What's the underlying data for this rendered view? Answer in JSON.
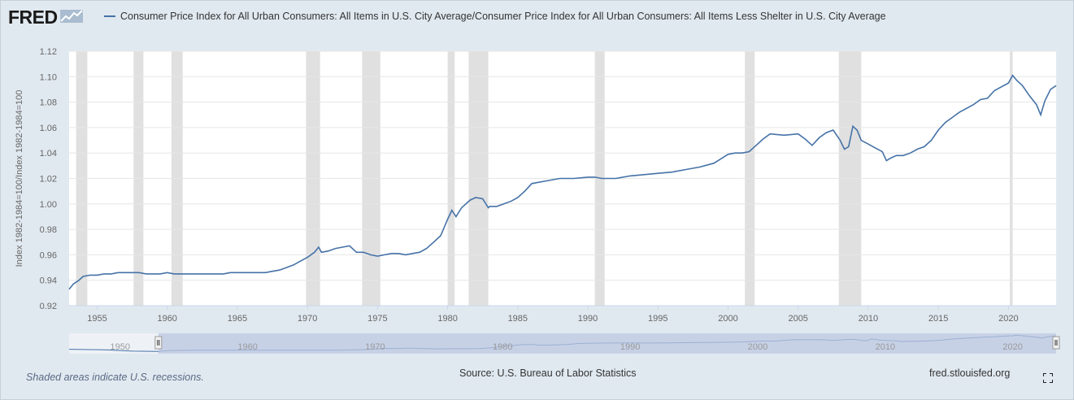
{
  "header": {
    "logo_text": "FRED",
    "logo_icon": "fred-chart-logo-icon",
    "legend_label": "Consumer Price Index for All Urban Consumers: All Items in U.S. City Average/Consumer Price Index for All Urban Consumers: All Items Less Shelter in U.S. City Average"
  },
  "colors": {
    "series": "#4572a7",
    "recession": "#e0e0e0",
    "background": "#e1e9f0",
    "plot_bg": "#ffffff",
    "navigator_fill": "#b9c6e0"
  },
  "footer": {
    "recession_note": "Shaded areas indicate U.S. recessions.",
    "source": "Source: U.S. Bureau of Labor Statistics",
    "site": "fred.stlouisfed.org",
    "fullscreen_icon": "fullscreen-icon"
  },
  "chart_data": {
    "type": "line",
    "title": "",
    "xlabel": "",
    "ylabel": "Index 1982-1984=100/Index 1982-1984=100",
    "xlim": [
      1953.0,
      2023.4
    ],
    "ylim": [
      0.92,
      1.12
    ],
    "x_ticks": [
      "1955",
      "1960",
      "1965",
      "1970",
      "1975",
      "1980",
      "1985",
      "1990",
      "1995",
      "2000",
      "2005",
      "2010",
      "2015",
      "2020"
    ],
    "y_ticks": [
      "0.92",
      "0.94",
      "0.96",
      "0.98",
      "1.00",
      "1.02",
      "1.04",
      "1.06",
      "1.08",
      "1.10",
      "1.12"
    ],
    "grid": true,
    "legend": "top",
    "recessions": [
      [
        1953.5,
        1954.3
      ],
      [
        1957.6,
        1958.3
      ],
      [
        1960.3,
        1961.1
      ],
      [
        1969.9,
        1970.9
      ],
      [
        1973.9,
        1975.2
      ],
      [
        1980.0,
        1980.5
      ],
      [
        1981.5,
        1982.9
      ],
      [
        1990.5,
        1991.2
      ],
      [
        2001.2,
        2001.9
      ],
      [
        2007.9,
        2009.5
      ],
      [
        2020.1,
        2020.3
      ]
    ],
    "series": [
      {
        "x": [
          1953.0,
          1953.3,
          1953.7,
          1954.0,
          1954.5,
          1955.0,
          1955.5,
          1956.0,
          1956.5,
          1957.0,
          1957.5,
          1958.0,
          1958.5,
          1959.0,
          1959.5,
          1960.0,
          1960.5,
          1961.0,
          1961.5,
          1962.0,
          1962.5,
          1963.0,
          1963.5,
          1964.0,
          1964.5,
          1965.0,
          1965.5,
          1966.0,
          1966.5,
          1967.0,
          1967.5,
          1968.0,
          1968.5,
          1969.0,
          1969.5,
          1970.0,
          1970.5,
          1970.8,
          1971.0,
          1971.5,
          1972.0,
          1972.5,
          1973.0,
          1973.5,
          1974.0,
          1974.5,
          1975.0,
          1975.5,
          1976.0,
          1976.5,
          1977.0,
          1977.5,
          1978.0,
          1978.5,
          1979.0,
          1979.5,
          1980.0,
          1980.3,
          1980.6,
          1981.0,
          1981.3,
          1981.6,
          1982.0,
          1982.5,
          1982.9,
          1983.0,
          1983.5,
          1984.0,
          1984.5,
          1985.0,
          1985.5,
          1986.0,
          1986.5,
          1987.0,
          1988.0,
          1989.0,
          1990.0,
          1990.5,
          1991.0,
          1992.0,
          1993.0,
          1994.0,
          1995.0,
          1996.0,
          1997.0,
          1998.0,
          1999.0,
          2000.0,
          2000.5,
          2001.0,
          2001.5,
          2002.0,
          2002.5,
          2003.0,
          2004.0,
          2005.0,
          2005.5,
          2006.0,
          2006.5,
          2007.0,
          2007.5,
          2008.0,
          2008.3,
          2008.6,
          2008.9,
          2009.2,
          2009.5,
          2010.0,
          2010.5,
          2011.0,
          2011.3,
          2011.6,
          2012.0,
          2012.5,
          2013.0,
          2013.5,
          2014.0,
          2014.5,
          2015.0,
          2015.5,
          2016.0,
          2016.5,
          2017.0,
          2017.5,
          2018.0,
          2018.5,
          2019.0,
          2019.5,
          2020.0,
          2020.3,
          2020.6,
          2021.0,
          2021.5,
          2022.0,
          2022.3,
          2022.6,
          2023.0,
          2023.4
        ],
        "values": [
          0.933,
          0.937,
          0.94,
          0.943,
          0.944,
          0.944,
          0.945,
          0.945,
          0.946,
          0.946,
          0.946,
          0.946,
          0.945,
          0.945,
          0.945,
          0.946,
          0.945,
          0.945,
          0.945,
          0.945,
          0.945,
          0.945,
          0.945,
          0.945,
          0.946,
          0.946,
          0.946,
          0.946,
          0.946,
          0.946,
          0.947,
          0.948,
          0.95,
          0.952,
          0.955,
          0.958,
          0.962,
          0.966,
          0.962,
          0.963,
          0.965,
          0.966,
          0.967,
          0.962,
          0.962,
          0.96,
          0.959,
          0.96,
          0.961,
          0.961,
          0.96,
          0.961,
          0.962,
          0.965,
          0.97,
          0.975,
          0.988,
          0.995,
          0.99,
          0.997,
          1.0,
          1.003,
          1.005,
          1.004,
          0.997,
          0.998,
          0.998,
          1.0,
          1.002,
          1.005,
          1.01,
          1.016,
          1.017,
          1.018,
          1.02,
          1.02,
          1.021,
          1.021,
          1.02,
          1.02,
          1.022,
          1.023,
          1.024,
          1.025,
          1.027,
          1.029,
          1.032,
          1.039,
          1.04,
          1.04,
          1.041,
          1.046,
          1.051,
          1.055,
          1.054,
          1.055,
          1.051,
          1.046,
          1.052,
          1.056,
          1.058,
          1.05,
          1.043,
          1.045,
          1.061,
          1.058,
          1.05,
          1.047,
          1.044,
          1.041,
          1.034,
          1.036,
          1.038,
          1.038,
          1.04,
          1.043,
          1.045,
          1.05,
          1.058,
          1.064,
          1.068,
          1.072,
          1.075,
          1.078,
          1.082,
          1.083,
          1.089,
          1.092,
          1.095,
          1.101,
          1.097,
          1.093,
          1.085,
          1.078,
          1.07,
          1.081,
          1.09,
          1.093
        ]
      }
    ]
  }
}
